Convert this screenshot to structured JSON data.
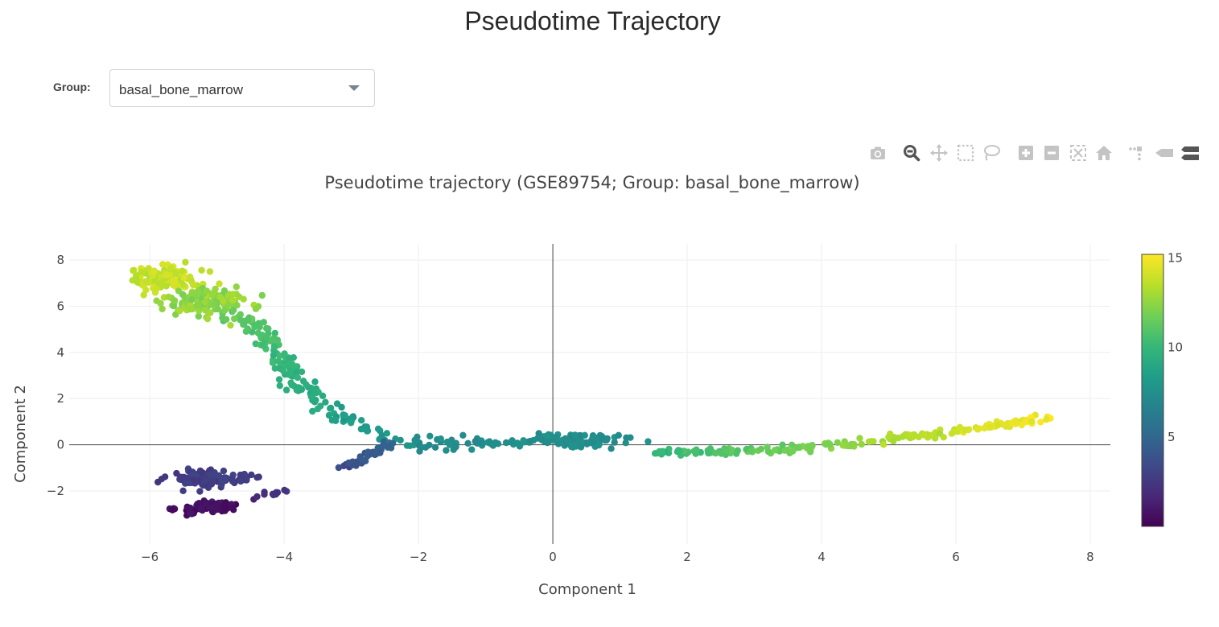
{
  "header": {
    "title": "Pseudotime Trajectory"
  },
  "group_selector": {
    "label": "Group:",
    "value": "basal_bone_marrow"
  },
  "modebar": {
    "icons": [
      "camera-icon",
      "zoom-icon",
      "pan-icon",
      "box-select-icon",
      "lasso-icon",
      "zoom-in-icon",
      "zoom-out-icon",
      "autoscale-icon",
      "reset-axes-icon",
      "spike-lines-icon",
      "hover-closest-icon",
      "hover-compare-icon"
    ],
    "active": "zoom-icon"
  },
  "chart_data": {
    "type": "scatter",
    "title": "Pseudotime trajectory (GSE89754; Group: basal_bone_marrow)",
    "xlabel": "Component 1",
    "ylabel": "Component 2",
    "xlim": [
      -7.2,
      8.3
    ],
    "ylim": [
      -4.3,
      8.7
    ],
    "xticks": [
      -6,
      -4,
      -2,
      0,
      2,
      4,
      6,
      8
    ],
    "yticks": [
      -2,
      0,
      2,
      4,
      6,
      8
    ],
    "grid": true,
    "zero_lines": true,
    "colorscale": "Viridis",
    "colorbar": {
      "min": 0,
      "max": 15.2,
      "ticks": [
        5,
        10,
        15
      ]
    },
    "clusters": [
      {
        "name": "",
        "cx": -5.8,
        "cy": 7.2,
        "sx": 0.28,
        "sy": 0.3,
        "n": 110,
        "c0": 13.2,
        "c1": 14.4
      },
      {
        "name": "",
        "cx": -5.2,
        "cy": 6.2,
        "sx": 0.3,
        "sy": 0.28,
        "n": 130,
        "c0": 11.8,
        "c1": 13.2
      },
      {
        "name": "",
        "cx": -5.15,
        "cy": -1.45,
        "sx": 0.3,
        "sy": 0.18,
        "n": 110,
        "c0": 2.3,
        "c1": 3.2
      },
      {
        "name": "",
        "cx": -5.2,
        "cy": -2.75,
        "sx": 0.25,
        "sy": 0.12,
        "n": 70,
        "c0": 0.2,
        "c1": 0.9
      },
      {
        "name": "",
        "cx": 0.5,
        "cy": 0.2,
        "sx": 0.35,
        "sy": 0.14,
        "n": 55,
        "c0": 7.0,
        "c1": 7.8
      }
    ],
    "paths": [
      {
        "name": "",
        "pts": [
          [
            -4.9,
            5.9
          ],
          [
            -4.3,
            4.8
          ],
          [
            -3.9,
            3.0
          ],
          [
            -3.3,
            1.4
          ],
          [
            -2.6,
            0.4
          ],
          [
            -2.0,
            0.1
          ]
        ],
        "c0": 11.5,
        "c1": 7.5,
        "n": 170,
        "spread": 0.16
      },
      {
        "name": "",
        "pts": [
          [
            -2.0,
            0.1
          ],
          [
            -1.0,
            0.05
          ],
          [
            0.0,
            0.2
          ],
          [
            1.0,
            0.1
          ]
        ],
        "c0": 7.3,
        "c1": 7.6,
        "n": 80,
        "spread": 0.13
      },
      {
        "name": "",
        "pts": [
          [
            1.5,
            -0.3
          ],
          [
            2.5,
            -0.3
          ],
          [
            3.5,
            -0.2
          ],
          [
            4.5,
            0.1
          ],
          [
            5.5,
            0.4
          ],
          [
            6.5,
            0.75
          ],
          [
            7.4,
            1.2
          ]
        ],
        "c0": 10.0,
        "c1": 15.2,
        "n": 190,
        "spread": 0.08
      },
      {
        "name": "",
        "pts": [
          [
            -3.1,
            -1.0
          ],
          [
            -2.7,
            -0.4
          ],
          [
            -2.4,
            0.1
          ]
        ],
        "c0": 3.5,
        "c1": 5.0,
        "n": 40,
        "spread": 0.1
      },
      {
        "name": "",
        "pts": [
          [
            -4.5,
            -2.3
          ],
          [
            -3.7,
            -1.85
          ]
        ],
        "c0": 1.8,
        "c1": 2.4,
        "n": 12,
        "spread": 0.06
      },
      {
        "name": "",
        "pts": [
          [
            -5.3,
            -2.6
          ],
          [
            -4.9,
            -2.5
          ]
        ],
        "c0": 0.9,
        "c1": 1.4,
        "n": 8,
        "spread": 0.06
      }
    ]
  }
}
